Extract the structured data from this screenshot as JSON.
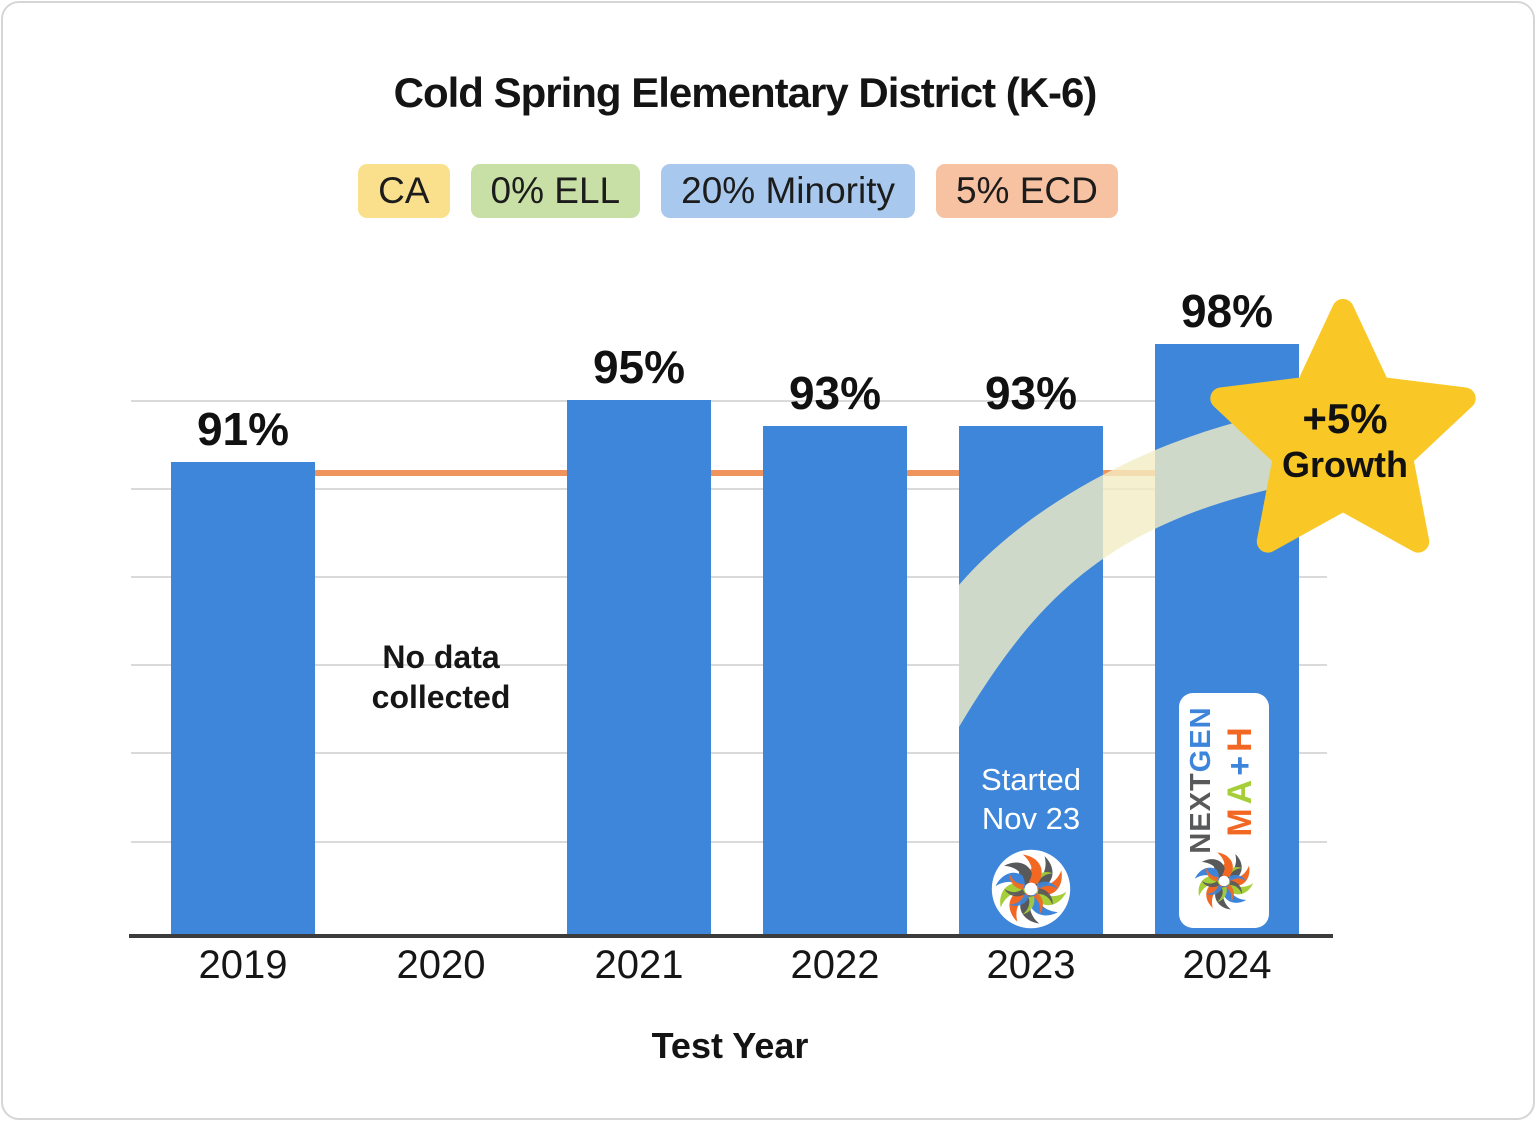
{
  "header": {
    "title": "Cold Spring Elementary District (K-6)"
  },
  "badges": [
    {
      "label": "CA",
      "bg": "#FAE08C"
    },
    {
      "label": "0% ELL",
      "bg": "#C8DFA6"
    },
    {
      "label": "20% Minority",
      "bg": "#A9C8ED"
    },
    {
      "label": "5% ECD",
      "bg": "#F7C2A2"
    }
  ],
  "chart_data": {
    "type": "bar",
    "categories": [
      "2019",
      "2020",
      "2021",
      "2022",
      "2023",
      "2024"
    ],
    "values": [
      91,
      null,
      95,
      93,
      93,
      98
    ],
    "bar_labels": [
      "91%",
      null,
      "95%",
      "93%",
      "93%",
      "98%"
    ],
    "xlabel": "Test Year",
    "ylabel": "",
    "y_axis_labels_visible": false,
    "baseline_reference_value": 91,
    "grid": true,
    "annotations": {
      "no_data": "No data\ncollected",
      "started": "Started\nNov 23",
      "growth_line1": "+5%",
      "growth_line2": "Growth"
    },
    "colors": {
      "bar": "#3E86D9",
      "baseline_line": "#F0945E",
      "star": "#F9C826",
      "gridline": "#DADADA",
      "axis": "#3C3C3C",
      "swoosh": "rgba(243,237,196,0.8)"
    }
  },
  "logos": {
    "nextgen_part1": "NEXT",
    "nextgen_part2": "GEN",
    "math_letters": [
      {
        "ch": "M",
        "color": "#F26822"
      },
      {
        "ch": "A",
        "color": "#A6CE39"
      },
      {
        "ch": "+",
        "color": "#3D85DB"
      },
      {
        "ch": "H",
        "color": "#F26822"
      }
    ],
    "nextgen_part1_color": "#58595B",
    "nextgen_part2_color": "#3D85DB",
    "splash_colors": [
      "#58595B",
      "#F26822",
      "#A6CE39",
      "#3D85DB"
    ]
  }
}
